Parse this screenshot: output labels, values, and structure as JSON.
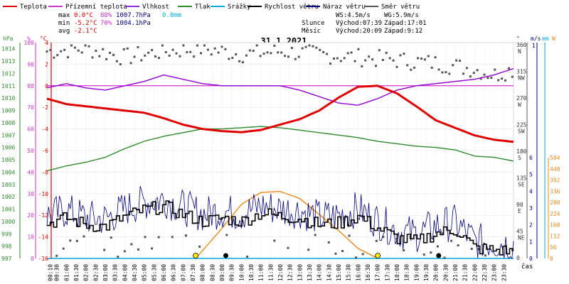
{
  "legend": [
    {
      "label": "Teplota",
      "color": "#e00000"
    },
    {
      "label": "Přízemní teplota",
      "color": "#cc33cc"
    },
    {
      "label": "Vlhkost",
      "color": "#8a2be2"
    },
    {
      "label": "Tlak",
      "color": "#2e8b2e"
    },
    {
      "label": "Srážky",
      "color": "#00aadd"
    },
    {
      "label": "Rychlost větru",
      "color": "#000000"
    },
    {
      "label": "Náraz větru",
      "color": "#000080"
    },
    {
      "label": "Směr větru",
      "color": "#555555"
    }
  ],
  "stats": {
    "max_label": "max",
    "max_temp": "0.0°C",
    "max_hum": "88%",
    "max_press": "1007.7hPa",
    "max_rain": "0.0mm",
    "min_label": "min",
    "min_temp": "-5.2°C",
    "min_hum": "70%",
    "min_press": "1004.1hPa",
    "avg_label": "avg",
    "avg_temp": "-2.1°C"
  },
  "wind_info": {
    "ws": "WS:4.5m/s",
    "wg": "WG:5.9m/s"
  },
  "sun_info": {
    "label": "Slunce",
    "rise": "Východ:07:39",
    "set": "Západ:17:01"
  },
  "moon_info": {
    "label": "Měsíc",
    "rise": "Východ:20:09",
    "set": "Západ:9:12"
  },
  "colors": {
    "temp": "#e00000",
    "hum": "#9400d3",
    "press": "#2e8b2e",
    "rain": "#00aadd",
    "wind": "#000000",
    "gust": "#000080",
    "dir": "#555555",
    "sun": "#e88a1a",
    "pressure_axis": "#2e8b2e",
    "temp_axis": "#e00000",
    "hum_axis": "#cc33cc",
    "wind_axis": "#000080",
    "rain_axis": "#00aadd",
    "solar_axis": "#e88a1a"
  },
  "chart_data": {
    "type": "line",
    "title": "31.1.2021",
    "xlabel": "čas",
    "x_ticks": [
      "00:10",
      "00:30",
      "01:00",
      "01:30",
      "02:00",
      "02:30",
      "03:00",
      "03:30",
      "04:00",
      "04:30",
      "05:00",
      "05:30",
      "06:00",
      "06:30",
      "07:00",
      "07:30",
      "08:00",
      "08:30",
      "09:00",
      "09:30",
      "10:00",
      "10:30",
      "11:00",
      "11:30",
      "12:00",
      "12:30",
      "13:00",
      "13:30",
      "14:00",
      "14:30",
      "15:00",
      "15:30",
      "16:00",
      "16:30",
      "17:00",
      "17:30",
      "18:00",
      "18:30",
      "19:00",
      "19:30",
      "20:00",
      "20:30",
      "21:00",
      "21:30",
      "22:00",
      "22:30",
      "23:00",
      "23:30"
    ],
    "axes": {
      "pressure": {
        "unit": "hPa",
        "ticks": [
          "1014",
          "1013",
          "1012",
          "1011",
          "1010",
          "1009",
          "1008",
          "1007",
          "1006",
          "1005",
          "1004",
          "1003",
          "1002",
          "1001",
          "1000",
          "999",
          "998",
          "997"
        ],
        "ylim": [
          997,
          1014.5
        ]
      },
      "humidity": {
        "unit": "%",
        "ticks": [
          "100",
          "90",
          "80",
          "70",
          "60",
          "50",
          "40",
          "30",
          "20",
          "10",
          "0"
        ],
        "ylim": [
          0,
          100
        ]
      },
      "temperature": {
        "unit": "°C",
        "ticks": [
          "4",
          "2",
          "0",
          "-2",
          "-4",
          "-6",
          "-8",
          "-10",
          "-12",
          "-14",
          "-16"
        ],
        "ylim": [
          -16,
          4
        ]
      },
      "direction": {
        "unit": "°",
        "ticks": [
          {
            "deg": "360",
            "dir": "N"
          },
          {
            "deg": "315",
            "dir": "NW"
          },
          {
            "deg": "270",
            "dir": "W"
          },
          {
            "deg": "225",
            "dir": "SW"
          },
          {
            "deg": "180",
            "dir": "S"
          },
          {
            "deg": "135",
            "dir": "SE"
          },
          {
            "deg": "90",
            "dir": "E"
          },
          {
            "deg": "45",
            "dir": "NE"
          },
          {
            "deg": "0",
            "dir": ""
          }
        ]
      },
      "wind": {
        "unit": "m/s",
        "ticks": [
          "6",
          "5",
          "4",
          "3",
          "2",
          "1",
          "0"
        ],
        "top": "1"
      },
      "rain": {
        "unit": "mm",
        "ticks": [
          "",
          "",
          "",
          "",
          "",
          "",
          ""
        ]
      },
      "solar": {
        "unit": "W",
        "ticks": [
          "504",
          "448",
          "392",
          "336",
          "280",
          "224",
          "168",
          "112",
          "56",
          "0"
        ]
      }
    },
    "series": [
      {
        "name": "Teplota",
        "unit": "°C",
        "x": [
          0,
          1,
          2,
          3,
          4,
          5,
          6,
          7,
          8,
          9,
          10,
          11,
          12,
          13,
          14,
          15,
          16,
          17,
          18,
          19,
          20,
          21,
          22,
          23,
          24
        ],
        "values": [
          -1.2,
          -1.7,
          -1.9,
          -2.1,
          -2.3,
          -2.5,
          -3.0,
          -3.6,
          -4.0,
          -4.2,
          -4.3,
          -4.1,
          -3.6,
          -3.1,
          -2.3,
          -1.1,
          -0.1,
          0.0,
          -0.7,
          -1.9,
          -3.2,
          -3.9,
          -4.6,
          -5.0,
          -5.2
        ]
      },
      {
        "name": "Vlhkost",
        "unit": "%",
        "x": [
          0,
          1,
          2,
          3,
          4,
          5,
          6,
          7,
          8,
          9,
          10,
          11,
          12,
          13,
          14,
          15,
          16,
          17,
          18,
          19,
          20,
          21,
          22,
          23,
          24
        ],
        "values": [
          79,
          81,
          79,
          78,
          80,
          82,
          85,
          83,
          81,
          80,
          80,
          80,
          80,
          78,
          75,
          72,
          71,
          74,
          78,
          80,
          81,
          82,
          83,
          85,
          88
        ]
      },
      {
        "name": "Tlak",
        "unit": "hPa",
        "x": [
          0,
          1,
          2,
          3,
          4,
          5,
          6,
          7,
          8,
          9,
          10,
          11,
          12,
          13,
          14,
          15,
          16,
          17,
          18,
          19,
          20,
          21,
          22,
          23,
          24
        ],
        "values": [
          1004.1,
          1004.5,
          1004.8,
          1005.2,
          1005.9,
          1006.5,
          1006.9,
          1007.2,
          1007.5,
          1007.5,
          1007.6,
          1007.7,
          1007.6,
          1007.4,
          1007.2,
          1007.0,
          1006.8,
          1006.5,
          1006.3,
          1006.1,
          1006.0,
          1005.8,
          1005.3,
          1005.2,
          1004.9
        ]
      },
      {
        "name": "Rychlost větru",
        "unit": "m/s",
        "x": [
          0,
          1,
          2,
          3,
          4,
          5,
          6,
          7,
          8,
          9,
          10,
          11,
          12,
          13,
          14,
          15,
          16,
          17,
          18,
          19,
          20,
          21,
          22,
          23,
          24
        ],
        "values": [
          2.1,
          2.4,
          2.0,
          1.9,
          2.5,
          2.9,
          3.1,
          2.6,
          2.2,
          2.4,
          2.2,
          2.7,
          2.5,
          2.4,
          2.0,
          2.1,
          2.5,
          1.8,
          1.2,
          1.0,
          1.5,
          1.7,
          0.6,
          0.5,
          0.4
        ]
      },
      {
        "name": "Směr větru",
        "unit": "°",
        "x": [
          0,
          2,
          4,
          6,
          8,
          10,
          12,
          14,
          16,
          18,
          20,
          22,
          23,
          24
        ],
        "values": [
          350,
          355,
          340,
          350,
          355,
          345,
          350,
          345,
          340,
          335,
          330,
          320,
          310,
          320
        ]
      },
      {
        "name": "Sluneční záření",
        "unit": "W",
        "x": [
          7.65,
          9,
          10,
          11,
          12,
          13,
          14,
          15,
          16,
          17.02
        ],
        "values": [
          0,
          150,
          270,
          330,
          335,
          300,
          220,
          140,
          50,
          0
        ]
      }
    ]
  }
}
